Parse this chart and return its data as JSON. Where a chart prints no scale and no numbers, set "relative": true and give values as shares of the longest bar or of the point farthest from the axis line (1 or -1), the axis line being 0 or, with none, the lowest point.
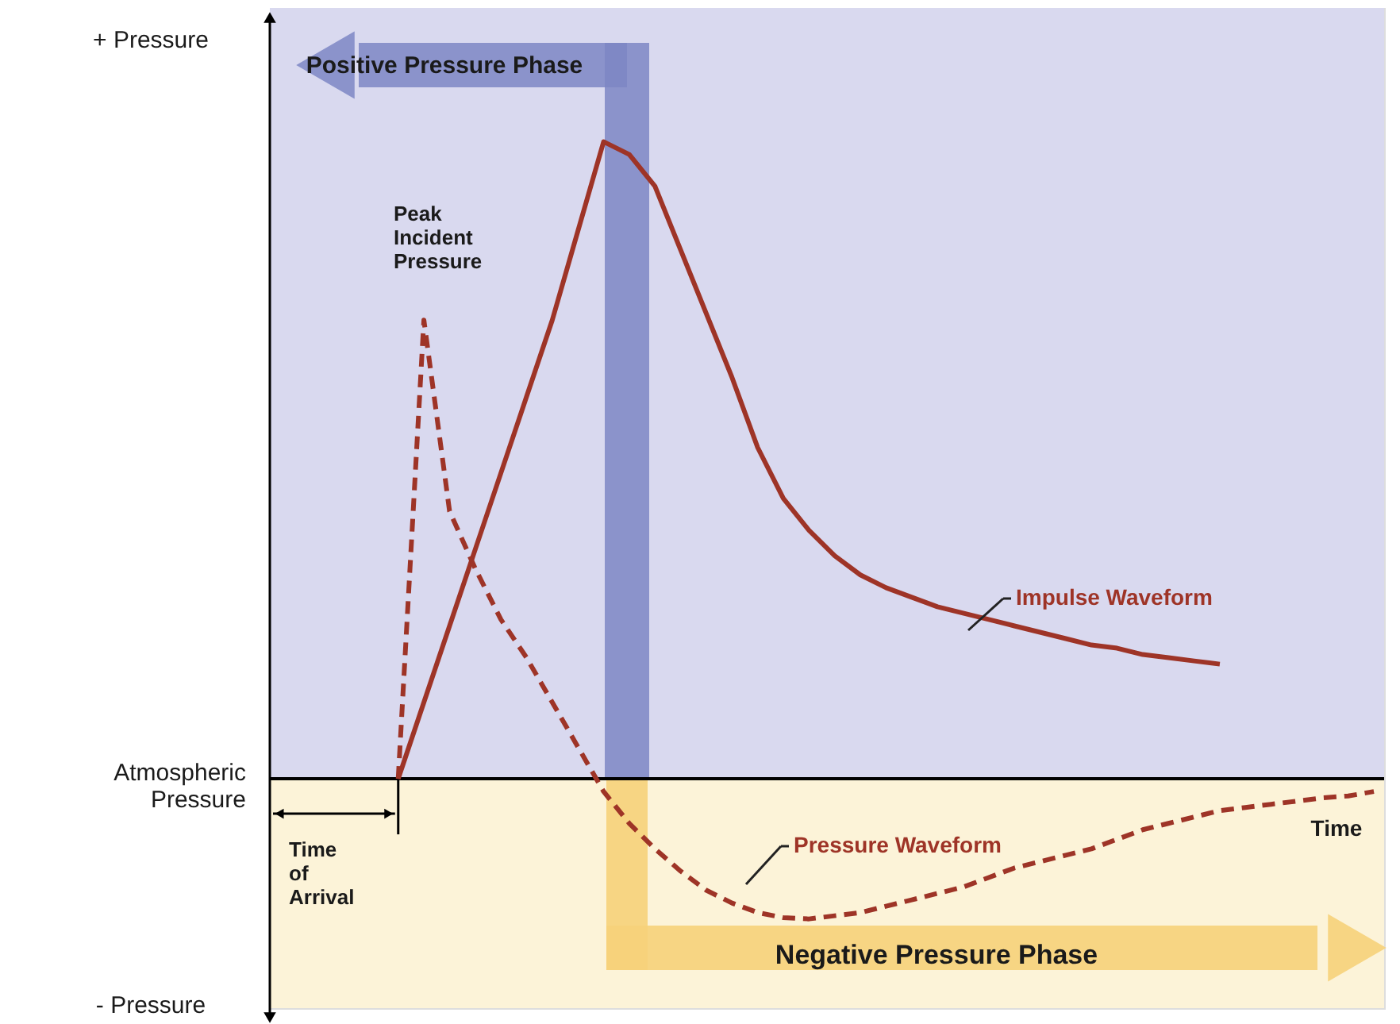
{
  "chart_data": {
    "type": "line",
    "relative": true,
    "xlabel": "Time",
    "categories": [
      null,
      null,
      null,
      null,
      null,
      null,
      null,
      null,
      null,
      null,
      null,
      null,
      null,
      null,
      null,
      null,
      null,
      null,
      null,
      null,
      null,
      null,
      null,
      null,
      null,
      null,
      null,
      null,
      null,
      null,
      null,
      null,
      null,
      null,
      null,
      null,
      null,
      null,
      null,
      null,
      null,
      null,
      null,
      null
    ],
    "series": [
      {
        "name": "Impulse Waveform",
        "color": "#9e3427",
        "line_style": "solid",
        "values": [
          null,
          null,
          null,
          null,
          null,
          0,
          0.12,
          0.24,
          0.36,
          0.48,
          0.6,
          0.72,
          0.86,
          1,
          0.98,
          0.93,
          0.83,
          0.73,
          0.63,
          0.52,
          0.44,
          0.39,
          0.35,
          0.32,
          0.3,
          0.285,
          0.27,
          0.26,
          0.25,
          0.24,
          0.23,
          0.22,
          0.21,
          0.205,
          0.195,
          0.19,
          0.185,
          0.18,
          null,
          null,
          null,
          null,
          null,
          null
        ]
      },
      {
        "name": "Pressure Waveform",
        "color": "#9e3427",
        "line_style": "dashed",
        "values": [
          null,
          null,
          null,
          null,
          null,
          0,
          0.72,
          0.42,
          0.33,
          0.25,
          0.19,
          0.12,
          0.05,
          -0.02,
          -0.07,
          -0.11,
          -0.145,
          -0.175,
          -0.195,
          -0.21,
          -0.218,
          -0.22,
          -0.215,
          -0.21,
          -0.2,
          -0.19,
          -0.18,
          -0.17,
          -0.155,
          -0.14,
          -0.13,
          -0.12,
          -0.11,
          -0.095,
          -0.08,
          -0.07,
          -0.06,
          -0.05,
          -0.045,
          -0.04,
          -0.035,
          -0.03,
          -0.027,
          -0.02
        ]
      }
    ],
    "bands": [
      {
        "axis": "y",
        "from": 0,
        "to": 1.21,
        "color": "#d9d9ef"
      },
      {
        "axis": "y",
        "from": -0.36,
        "to": 0,
        "color": "#fcf3d8"
      }
    ],
    "annotations": [
      "+ Pressure",
      "Atmospheric Pressure",
      "- Pressure",
      "Positive Pressure Phase",
      "Negative Pressure Phase",
      "Peak Incident Pressure",
      "Time of Arrival"
    ],
    "marker": "none"
  }
}
